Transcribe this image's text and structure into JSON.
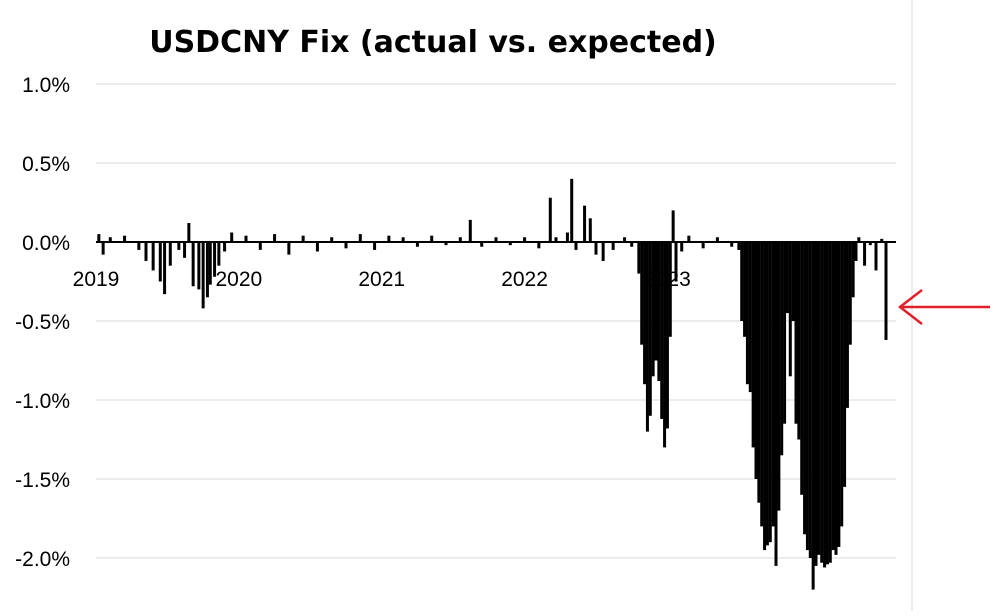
{
  "chart_data": {
    "type": "bar",
    "title": "USDCNY Fix (actual vs. expected)",
    "xlabel": "",
    "ylabel": "",
    "ylim": [
      -2.3,
      1.1
    ],
    "xlim": [
      2019.0,
      2024.6
    ],
    "grid": true,
    "legend": "none",
    "y_ticks": [
      {
        "value": 1.0,
        "label": "1.0%"
      },
      {
        "value": 0.5,
        "label": "0.5%"
      },
      {
        "value": 0.0,
        "label": "0.0%"
      },
      {
        "value": -0.5,
        "label": "-0.5%"
      },
      {
        "value": -1.0,
        "label": "-1.0%"
      },
      {
        "value": -1.5,
        "label": "-1.5%"
      },
      {
        "value": -2.0,
        "label": "-2.0%"
      }
    ],
    "x_ticks": [
      {
        "value": 2019,
        "label": "2019"
      },
      {
        "value": 2020,
        "label": "2020"
      },
      {
        "value": 2021,
        "label": "2021"
      },
      {
        "value": 2022,
        "label": "2022"
      },
      {
        "value": 2023,
        "label": "2023"
      }
    ],
    "series": [
      {
        "color": "#000000",
        "points": [
          [
            2019.02,
            0.05
          ],
          [
            2019.05,
            -0.08
          ],
          [
            2019.1,
            0.03
          ],
          [
            2019.2,
            0.04
          ],
          [
            2019.3,
            -0.05
          ],
          [
            2019.35,
            -0.12
          ],
          [
            2019.4,
            -0.18
          ],
          [
            2019.45,
            -0.25
          ],
          [
            2019.48,
            -0.33
          ],
          [
            2019.52,
            -0.15
          ],
          [
            2019.58,
            -0.05
          ],
          [
            2019.62,
            -0.1
          ],
          [
            2019.65,
            0.12
          ],
          [
            2019.68,
            -0.28
          ],
          [
            2019.72,
            -0.3
          ],
          [
            2019.75,
            -0.42
          ],
          [
            2019.78,
            -0.35
          ],
          [
            2019.8,
            -0.27
          ],
          [
            2019.83,
            -0.22
          ],
          [
            2019.86,
            -0.15
          ],
          [
            2019.9,
            -0.06
          ],
          [
            2019.95,
            0.06
          ],
          [
            2020.05,
            0.04
          ],
          [
            2020.15,
            -0.05
          ],
          [
            2020.25,
            0.05
          ],
          [
            2020.35,
            -0.08
          ],
          [
            2020.45,
            0.04
          ],
          [
            2020.55,
            -0.06
          ],
          [
            2020.65,
            0.03
          ],
          [
            2020.75,
            -0.04
          ],
          [
            2020.85,
            0.05
          ],
          [
            2020.95,
            -0.05
          ],
          [
            2021.05,
            0.04
          ],
          [
            2021.15,
            0.03
          ],
          [
            2021.25,
            -0.03
          ],
          [
            2021.35,
            0.04
          ],
          [
            2021.45,
            -0.02
          ],
          [
            2021.55,
            0.03
          ],
          [
            2021.62,
            0.14
          ],
          [
            2021.7,
            -0.03
          ],
          [
            2021.8,
            0.03
          ],
          [
            2021.9,
            -0.02
          ],
          [
            2022.0,
            0.03
          ],
          [
            2022.1,
            -0.04
          ],
          [
            2022.18,
            0.28
          ],
          [
            2022.22,
            0.03
          ],
          [
            2022.3,
            0.06
          ],
          [
            2022.33,
            0.4
          ],
          [
            2022.36,
            -0.05
          ],
          [
            2022.42,
            0.23
          ],
          [
            2022.46,
            0.15
          ],
          [
            2022.5,
            -0.08
          ],
          [
            2022.55,
            -0.12
          ],
          [
            2022.62,
            -0.05
          ],
          [
            2022.7,
            0.03
          ],
          [
            2022.75,
            -0.03
          ],
          [
            2022.8,
            -0.2
          ],
          [
            2022.82,
            -0.65
          ],
          [
            2022.84,
            -0.9
          ],
          [
            2022.86,
            -1.2
          ],
          [
            2022.88,
            -1.1
          ],
          [
            2022.9,
            -0.85
          ],
          [
            2022.92,
            -0.75
          ],
          [
            2022.94,
            -0.88
          ],
          [
            2022.96,
            -1.12
          ],
          [
            2022.98,
            -1.3
          ],
          [
            2023.0,
            -1.18
          ],
          [
            2023.02,
            -0.6
          ],
          [
            2023.04,
            0.2
          ],
          [
            2023.06,
            -0.25
          ],
          [
            2023.1,
            -0.06
          ],
          [
            2023.15,
            0.04
          ],
          [
            2023.25,
            -0.04
          ],
          [
            2023.35,
            0.03
          ],
          [
            2023.45,
            -0.03
          ],
          [
            2023.5,
            -0.05
          ],
          [
            2023.52,
            -0.5
          ],
          [
            2023.54,
            -0.6
          ],
          [
            2023.56,
            -0.9
          ],
          [
            2023.58,
            -0.95
          ],
          [
            2023.6,
            -1.3
          ],
          [
            2023.62,
            -1.5
          ],
          [
            2023.64,
            -1.65
          ],
          [
            2023.66,
            -1.8
          ],
          [
            2023.68,
            -1.95
          ],
          [
            2023.7,
            -1.92
          ],
          [
            2023.72,
            -1.9
          ],
          [
            2023.74,
            -1.8
          ],
          [
            2023.76,
            -2.05
          ],
          [
            2023.78,
            -1.7
          ],
          [
            2023.8,
            -1.35
          ],
          [
            2023.82,
            -1.15
          ],
          [
            2023.84,
            -0.45
          ],
          [
            2023.86,
            -0.85
          ],
          [
            2023.88,
            -0.5
          ],
          [
            2023.9,
            -1.15
          ],
          [
            2023.92,
            -1.25
          ],
          [
            2023.94,
            -1.6
          ],
          [
            2023.96,
            -1.85
          ],
          [
            2023.98,
            -1.95
          ],
          [
            2024.0,
            -2.0
          ],
          [
            2024.02,
            -2.2
          ],
          [
            2024.04,
            -2.05
          ],
          [
            2024.06,
            -1.98
          ],
          [
            2024.08,
            -2.03
          ],
          [
            2024.1,
            -2.06
          ],
          [
            2024.12,
            -2.04
          ],
          [
            2024.14,
            -2.03
          ],
          [
            2024.16,
            -1.95
          ],
          [
            2024.18,
            -1.98
          ],
          [
            2024.2,
            -1.93
          ],
          [
            2024.22,
            -1.8
          ],
          [
            2024.24,
            -1.55
          ],
          [
            2024.26,
            -1.05
          ],
          [
            2024.28,
            -0.65
          ],
          [
            2024.3,
            -0.35
          ],
          [
            2024.32,
            -0.12
          ],
          [
            2024.34,
            0.03
          ],
          [
            2024.38,
            -0.15
          ],
          [
            2024.42,
            -0.02
          ],
          [
            2024.46,
            -0.18
          ],
          [
            2024.5,
            0.02
          ],
          [
            2024.53,
            -0.62
          ]
        ]
      }
    ],
    "annotation": {
      "type": "arrow",
      "color": "#e0202a",
      "points_to": "last bar"
    }
  }
}
